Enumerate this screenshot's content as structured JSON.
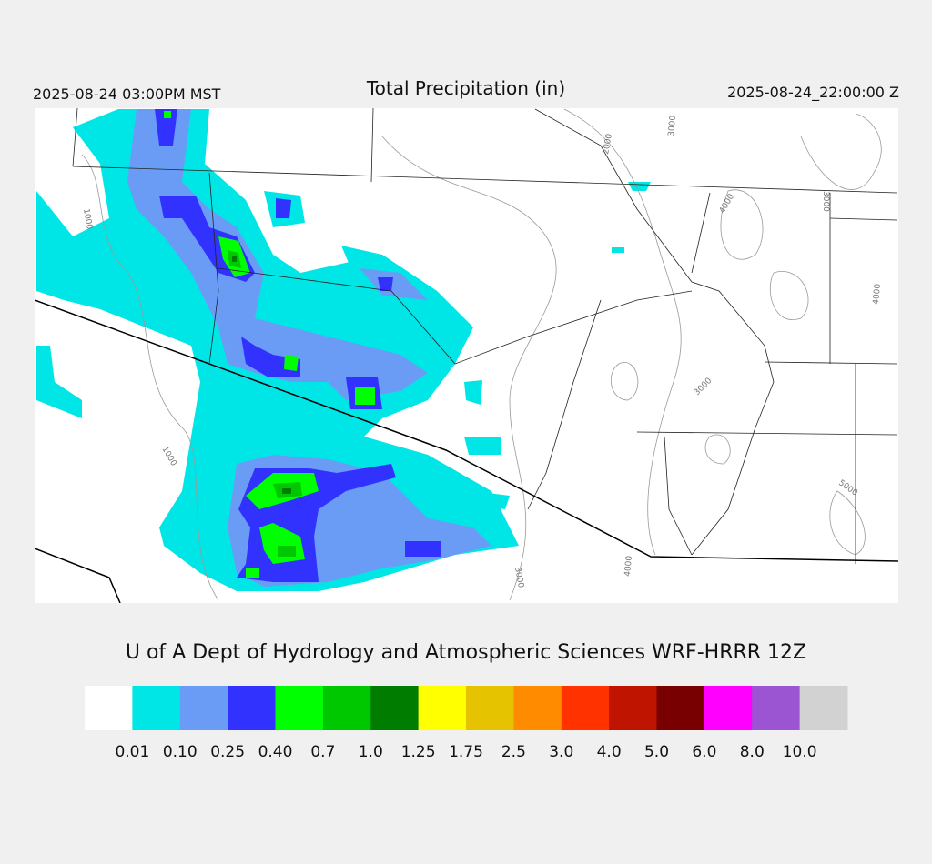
{
  "header": {
    "left": "2025-08-24 03:00PM MST",
    "title": "Total Precipitation (in)",
    "right": "2025-08-24_22:00:00 Z"
  },
  "map": {
    "contour_labels": [
      "1000",
      "2000",
      "3000",
      "3000",
      "4000",
      "4000",
      "3000",
      "1000",
      "5000",
      "3000",
      "4000"
    ]
  },
  "credit": "U of A Dept of Hydrology and Atmospheric Sciences WRF-HRRR 12Z",
  "colorbar": {
    "colors": [
      "#ffffff",
      "#00e6e6",
      "#6b9cf5",
      "#3232ff",
      "#00ff00",
      "#00c800",
      "#007d00",
      "#ffff00",
      "#e6c300",
      "#ff8c00",
      "#ff3200",
      "#be1400",
      "#780000",
      "#ff00ff",
      "#9b55d2",
      "#d2d2d2"
    ],
    "labels": [
      "0.01",
      "0.10",
      "0.25",
      "0.40",
      "0.7",
      "1.0",
      "1.25",
      "1.75",
      "2.5",
      "3.0",
      "4.0",
      "5.0",
      "6.0",
      "8.0",
      "10.0"
    ]
  }
}
